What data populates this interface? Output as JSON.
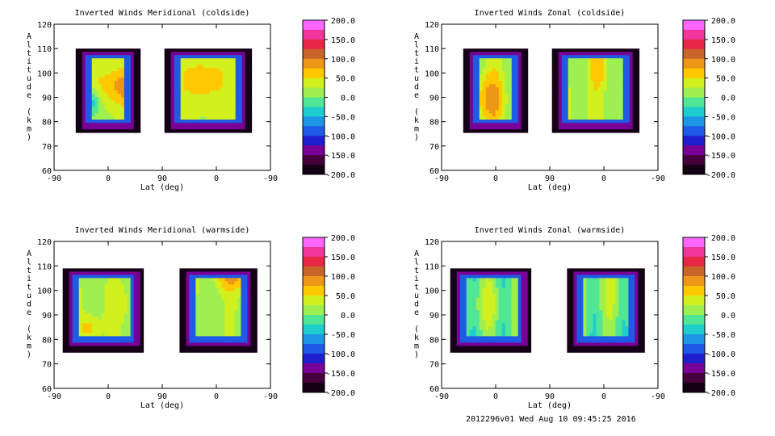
{
  "footer": "2012296v01 Wed Aug 10 09:45:25 2016",
  "colorbar": {
    "labels": [
      "200.0",
      "150.0",
      "100.0",
      "50.0",
      "0.0",
      "-50.0",
      "-100.0",
      "-150.0",
      "-200.0"
    ],
    "colors": [
      "#ff66ff",
      "#f0369a",
      "#e62846",
      "#c86428",
      "#ee9618",
      "#ffc800",
      "#d2f01e",
      "#9ef050",
      "#50e696",
      "#1ecdcd",
      "#1e96e6",
      "#1e5ae6",
      "#1e1ecd",
      "#780096",
      "#46003c",
      "#140014"
    ],
    "range": [
      -200,
      200
    ]
  },
  "chart_data": [
    {
      "type": "heatmap",
      "title": "Inverted Winds Meridional (coldside)",
      "xlabel": "Lat (deg)",
      "ylabel": "Altitude (km)",
      "xticks": [
        "-90",
        "0",
        "90",
        "0",
        "-90"
      ],
      "yticks": [
        "60",
        "70",
        "80",
        "90",
        "100",
        "110",
        "120"
      ],
      "ylim": [
        60,
        120
      ]
    },
    {
      "type": "heatmap",
      "title": "Inverted Winds Zonal (coldside)",
      "xlabel": "Lat (deg)",
      "ylabel": "Altitude (km)",
      "xticks": [
        "-90",
        "0",
        "90",
        "0",
        "-90"
      ],
      "yticks": [
        "60",
        "70",
        "80",
        "90",
        "100",
        "110",
        "120"
      ],
      "ylim": [
        60,
        120
      ]
    },
    {
      "type": "heatmap",
      "title": "Inverted Winds Meridional (warmside)",
      "xlabel": "Lat (deg)",
      "ylabel": "Altitude (km)",
      "xticks": [
        "-90",
        "0",
        "90",
        "0",
        "-90"
      ],
      "yticks": [
        "60",
        "70",
        "80",
        "90",
        "100",
        "110",
        "120"
      ],
      "ylim": [
        60,
        120
      ]
    },
    {
      "type": "heatmap",
      "title": "Inverted Winds Zonal (warmside)",
      "xlabel": "Lat (deg)",
      "ylabel": "Altitude (km)",
      "xticks": [
        "-90",
        "0",
        "90",
        "0",
        "-90"
      ],
      "yticks": [
        "60",
        "70",
        "80",
        "90",
        "100",
        "110",
        "120"
      ],
      "ylim": [
        60,
        120
      ]
    }
  ]
}
